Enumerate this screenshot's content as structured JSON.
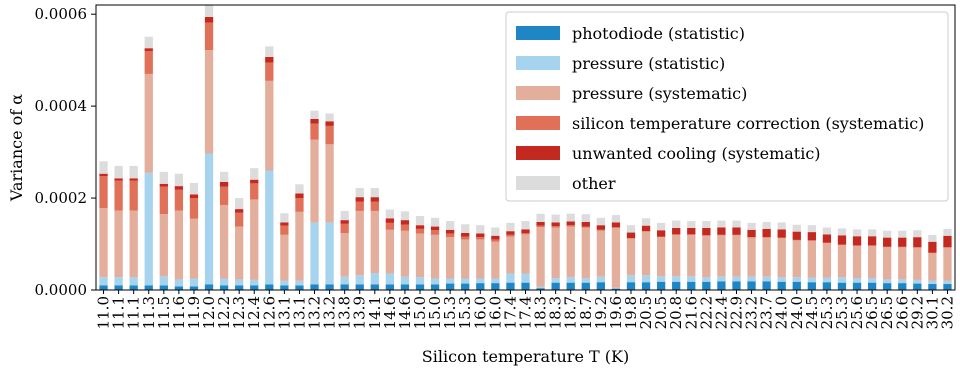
{
  "chart_data": {
    "type": "bar",
    "stacked": true,
    "xlabel": "Silicon temperature T (K)",
    "ylabel": "Variance of α",
    "ylim": [
      0,
      0.00062
    ],
    "yticks": [
      0,
      0.0002,
      0.0004,
      0.0006
    ],
    "ytick_labels": [
      "0.0000",
      "0.0002",
      "0.0004",
      "0.0006"
    ],
    "legend_position": "top-right",
    "categories": [
      "11.0",
      "11.1",
      "11.1",
      "11.3",
      "11.5",
      "11.6",
      "11.9",
      "12.0",
      "12.2",
      "12.3",
      "12.4",
      "12.6",
      "13.1",
      "13.1",
      "13.2",
      "13.2",
      "13.8",
      "13.9",
      "14.1",
      "14.6",
      "14.6",
      "15.0",
      "15.0",
      "15.3",
      "15.3",
      "16.0",
      "16.0",
      "17.4",
      "17.4",
      "18.3",
      "18.3",
      "18.7",
      "18.7",
      "19.2",
      "19.6",
      "19.8",
      "20.5",
      "20.5",
      "20.8",
      "21.6",
      "22.2",
      "22.4",
      "22.9",
      "23.2",
      "23.7",
      "24.0",
      "24.0",
      "24.5",
      "25.3",
      "25.3",
      "25.6",
      "26.5",
      "26.5",
      "26.6",
      "29.2",
      "30.1",
      "30.2"
    ],
    "series": [
      {
        "name": "photodiode (statistic)",
        "color": "#1f86c6",
        "values": [
          1e-05,
          1e-05,
          1e-05,
          1e-05,
          1e-05,
          8e-06,
          8e-06,
          1.2e-05,
          1e-05,
          1e-05,
          1e-05,
          1.2e-05,
          1e-05,
          1e-05,
          1.2e-05,
          1.2e-05,
          1.2e-05,
          1.2e-05,
          1.2e-05,
          1.2e-05,
          1.2e-05,
          1.2e-05,
          1.2e-05,
          1.4e-05,
          1.4e-05,
          1.5e-05,
          1.5e-05,
          1.6e-05,
          1.6e-05,
          4e-06,
          1.6e-05,
          1.6e-05,
          1.6e-05,
          1.7e-05,
          3e-06,
          1.7e-05,
          1.7e-05,
          1.8e-05,
          1.8e-05,
          1.8e-05,
          1.8e-05,
          1.9e-05,
          1.9e-05,
          1.9e-05,
          1.9e-05,
          1.8e-05,
          1.8e-05,
          1.7e-05,
          1.7e-05,
          1.6e-05,
          1.6e-05,
          1.6e-05,
          1.5e-05,
          1.5e-05,
          1.4e-05,
          1.3e-05,
          1.3e-05
        ]
      },
      {
        "name": "pressure (statistic)",
        "color": "#a6d3ee",
        "values": [
          1.8e-05,
          1.8e-05,
          1.8e-05,
          0.000245,
          2e-05,
          1.5e-05,
          1.7e-05,
          0.000285,
          1.5e-05,
          1.3e-05,
          1.2e-05,
          0.000248,
          1e-05,
          1e-05,
          0.000135,
          0.000135,
          1.7e-05,
          2e-05,
          2.5e-05,
          2.4e-05,
          1.7e-05,
          1.6e-05,
          1.3e-05,
          1.1e-05,
          1.1e-05,
          1e-05,
          1e-05,
          2e-05,
          2e-05,
          3e-06,
          1e-05,
          1.2e-05,
          1e-05,
          1.2e-05,
          2e-06,
          1.5e-05,
          1.5e-05,
          1.2e-05,
          1.2e-05,
          1.2e-05,
          1e-05,
          1e-05,
          1e-05,
          1e-05,
          1e-05,
          1e-05,
          1e-05,
          1e-05,
          1e-05,
          1.2e-05,
          1e-05,
          1e-05,
          8e-06,
          8e-06,
          8e-06,
          7e-06,
          7e-06
        ]
      },
      {
        "name": "pressure (systematic)",
        "color": "#e3ae9b",
        "values": [
          0.00015,
          0.000145,
          0.000145,
          0.000215,
          0.000135,
          0.00015,
          0.00013,
          0.000225,
          0.00016,
          0.000115,
          0.000175,
          0.000195,
          0.0001,
          0.00015,
          0.00018,
          0.00017,
          9.5e-05,
          0.00014,
          0.000135,
          9.5e-05,
          0.0001,
          9.5e-05,
          9.5e-05,
          9e-05,
          8.5e-05,
          8.5e-05,
          8e-05,
          8e-05,
          8.5e-05,
          0.00013,
          0.00011,
          0.00011,
          0.00011,
          0.0001,
          0.00013,
          8e-05,
          9.5e-05,
          8.5e-05,
          9e-05,
          9e-05,
          9e-05,
          9e-05,
          9e-05,
          8.5e-05,
          8.5e-05,
          8.5e-05,
          8e-05,
          8e-05,
          7.5e-05,
          7e-05,
          7e-05,
          7e-05,
          7e-05,
          7e-05,
          7e-05,
          6e-05,
          7.2e-05
        ]
      },
      {
        "name": "silicon temperature correction (systematic)",
        "color": "#e07058",
        "values": [
          7e-05,
          6.5e-05,
          6.5e-05,
          5e-05,
          6e-05,
          4.5e-05,
          4.5e-05,
          6e-05,
          4e-05,
          3e-05,
          3.5e-05,
          4e-05,
          2e-05,
          3e-05,
          3.5e-05,
          4e-05,
          2e-05,
          2e-05,
          2e-05,
          1.5e-05,
          1.3e-05,
          1e-05,
          1e-05,
          8e-06,
          6e-06,
          5e-06,
          5e-06,
          4e-06,
          3e-06,
          3e-06,
          3e-06,
          3e-06,
          2e-06,
          2e-06,
          2e-06,
          1e-06,
          1e-06,
          1e-06,
          1e-06,
          1e-06,
          1e-06,
          1e-06,
          1e-06,
          1e-06,
          1e-06,
          1e-06,
          1e-06,
          1e-06,
          1e-06,
          1e-06,
          1e-06,
          1e-06,
          1e-06,
          1e-06,
          1e-06,
          1e-06,
          1e-06
        ]
      },
      {
        "name": "unwanted cooling (systematic)",
        "color": "#c4291f",
        "values": [
          5e-06,
          5e-06,
          5e-06,
          6e-06,
          6e-06,
          8e-06,
          8e-06,
          1.2e-05,
          1e-05,
          8e-06,
          8e-06,
          1.2e-05,
          7e-06,
          1e-05,
          1e-05,
          1e-05,
          8e-06,
          1e-05,
          1e-05,
          1e-05,
          1e-05,
          8e-06,
          8e-06,
          8e-06,
          8e-06,
          8e-06,
          8e-06,
          8e-06,
          8e-06,
          8e-06,
          8e-06,
          8e-06,
          1e-05,
          1e-05,
          1e-05,
          1.2e-05,
          1.2e-05,
          1.4e-05,
          1.4e-05,
          1.4e-05,
          1.6e-05,
          1.6e-05,
          1.6e-05,
          1.6e-05,
          1.8e-05,
          1.8e-05,
          1.8e-05,
          1.8e-05,
          1.8e-05,
          2e-05,
          2e-05,
          2e-05,
          2e-05,
          2e-05,
          2.2e-05,
          2.4e-05,
          2.5e-05
        ]
      },
      {
        "name": "other",
        "color": "#dcdcdc",
        "values": [
          2.7e-05,
          2.7e-05,
          2.7e-05,
          2.5e-05,
          2.6e-05,
          2.7e-05,
          2.5e-05,
          2.5e-05,
          2.2e-05,
          2.4e-05,
          2.5e-05,
          2.3e-05,
          2e-05,
          2e-05,
          1.8e-05,
          1.7e-05,
          2e-05,
          2e-05,
          2e-05,
          1.9e-05,
          1.9e-05,
          2e-05,
          1.9e-05,
          1.9e-05,
          1.9e-05,
          1.8e-05,
          1.8e-05,
          1.8e-05,
          1.8e-05,
          1.8e-05,
          1.7e-05,
          1.7e-05,
          1.7e-05,
          1.6e-05,
          1.6e-05,
          1.6e-05,
          1.6e-05,
          1.6e-05,
          1.6e-05,
          1.5e-05,
          1.5e-05,
          1.5e-05,
          1.5e-05,
          1.5e-05,
          1.5e-05,
          1.5e-05,
          1.5e-05,
          1.5e-05,
          1.5e-05,
          1.5e-05,
          1.5e-05,
          1.5e-05,
          1.5e-05,
          1.5e-05,
          1.5e-05,
          1.5e-05,
          1.5e-05
        ]
      }
    ]
  }
}
